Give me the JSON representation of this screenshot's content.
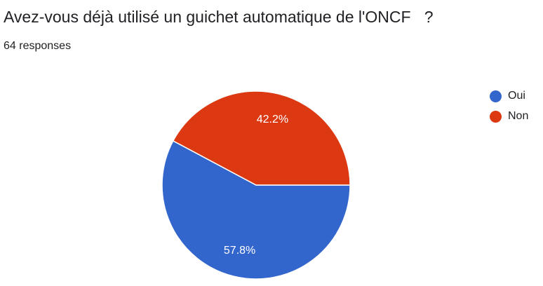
{
  "question": {
    "title": "Avez-vous déjà utilisé un guichet automatique de l'ONCF   ?",
    "responses_label": "64 responses"
  },
  "chart_data": {
    "type": "pie",
    "categories": [
      "Oui",
      "Non"
    ],
    "values": [
      57.8,
      42.2
    ],
    "labels": [
      "57.8%",
      "42.2%"
    ],
    "colors": [
      "#3366cc",
      "#dc3912"
    ],
    "legend_position": "top-right"
  }
}
